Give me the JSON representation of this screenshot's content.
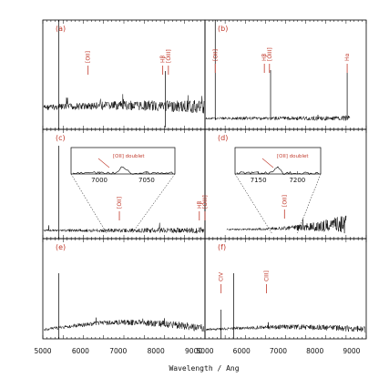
{
  "chart_data": {
    "type": "line",
    "xlabel": "Wavelength / Ang",
    "x_ticks_left": [
      5000,
      6000,
      7000,
      8000,
      9000
    ],
    "x_ticks_right": [
      5000,
      6000,
      7000,
      8000,
      9000
    ],
    "xlim_left": [
      5000,
      9300
    ],
    "xlim_right": [
      5000,
      9400
    ],
    "panels": [
      {
        "id": "a",
        "label": "(a)",
        "lines": [
          {
            "label": "[OII]",
            "x": 6200
          },
          {
            "label": "Hβ",
            "x": 8180
          },
          {
            "label": "[OIII]",
            "x": 8330
          }
        ]
      },
      {
        "id": "b",
        "label": "(b)",
        "lines": [
          {
            "label": "[OII]",
            "x": 5280
          },
          {
            "label": "Hβ",
            "x": 6620
          },
          {
            "label": "[OIII]",
            "x": 6760
          },
          {
            "label": "Hα",
            "x": 8880
          }
        ]
      },
      {
        "id": "c",
        "label": "(c)",
        "lines": [
          {
            "label": "[OII]",
            "x": 7030
          },
          {
            "label": "Hβ",
            "x": 9150
          },
          {
            "label": "[OIII]",
            "x": 9300
          }
        ],
        "inset": {
          "label": "[OII] doublet",
          "ticks": [
            7000,
            7050
          ]
        }
      },
      {
        "id": "d",
        "label": "(d)",
        "lines": [
          {
            "label": "[OII]",
            "x": 7170
          }
        ],
        "inset": {
          "label": "[OII] doublet",
          "ticks": [
            7150,
            7200
          ]
        }
      },
      {
        "id": "e",
        "label": "(e)",
        "lines": []
      },
      {
        "id": "f",
        "label": "(f)",
        "lines": [
          {
            "label": "CIV",
            "x": 5440
          },
          {
            "label": "CIII]",
            "x": 6680
          }
        ]
      }
    ]
  }
}
